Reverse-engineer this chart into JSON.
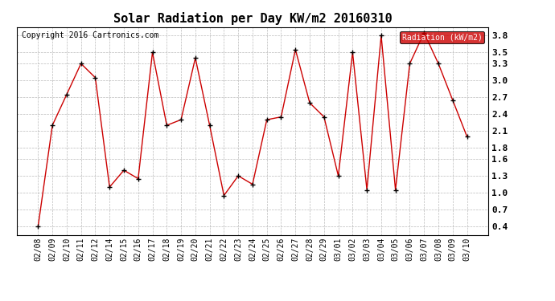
{
  "title": "Solar Radiation per Day KW/m2 20160310",
  "copyright": "Copyright 2016 Cartronics.com",
  "legend_label": "Radiation (kW/m2)",
  "dates": [
    "02/08",
    "02/09",
    "02/10",
    "02/11",
    "02/12",
    "02/14",
    "02/15",
    "02/16",
    "02/17",
    "02/18",
    "02/19",
    "02/20",
    "02/21",
    "02/22",
    "02/23",
    "02/24",
    "02/25",
    "02/26",
    "02/27",
    "02/28",
    "02/29",
    "03/01",
    "03/02",
    "03/03",
    "03/04",
    "03/05",
    "03/06",
    "03/07",
    "03/08",
    "03/09",
    "03/10"
  ],
  "values": [
    0.4,
    2.2,
    2.75,
    3.3,
    3.05,
    1.1,
    1.4,
    1.25,
    3.5,
    2.2,
    2.3,
    3.4,
    2.2,
    0.95,
    1.3,
    1.15,
    2.3,
    2.35,
    3.55,
    2.6,
    2.35,
    1.3,
    3.5,
    1.05,
    3.8,
    1.05,
    3.3,
    3.85,
    3.3,
    2.65,
    2.0
  ],
  "line_color": "#cc0000",
  "marker": "+",
  "marker_color": "#000000",
  "legend_bg": "#cc0000",
  "legend_text_color": "#ffffff",
  "bg_color": "#ffffff",
  "grid_color": "#aaaaaa",
  "yticks": [
    0.4,
    0.7,
    1.0,
    1.3,
    1.6,
    1.8,
    2.1,
    2.4,
    2.7,
    3.0,
    3.3,
    3.5,
    3.8
  ],
  "ymin": 0.25,
  "ymax": 3.95,
  "title_fontsize": 11,
  "copyright_fontsize": 7,
  "tick_fontsize": 7,
  "legend_fontsize": 7
}
